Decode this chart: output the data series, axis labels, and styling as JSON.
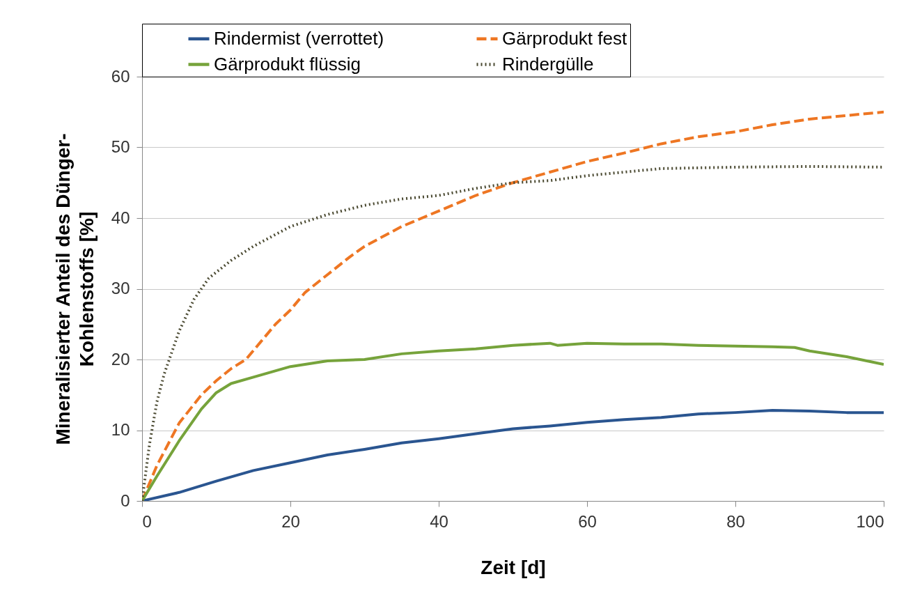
{
  "chart_data": {
    "type": "line",
    "xlabel": "Zeit [d]",
    "ylabel": "Mineralisierter Anteil des Dünger-Kohlenstoffs [%]",
    "xlim": [
      0,
      100
    ],
    "xticks": [
      0,
      20,
      40,
      60,
      80,
      100
    ],
    "ylim": [
      0,
      60
    ],
    "yticks": [
      0,
      10,
      20,
      30,
      40,
      50,
      60
    ],
    "grid": "y",
    "legend": "top",
    "marker": "none",
    "series": [
      {
        "name": "Rindermist (verrottet)",
        "color": "#2a5590",
        "line_style": "solid",
        "x": [
          0,
          5,
          10,
          15,
          20,
          25,
          30,
          35,
          40,
          45,
          50,
          55,
          60,
          65,
          70,
          75,
          80,
          85,
          90,
          95,
          100
        ],
        "values": [
          0,
          1.2,
          2.8,
          4.3,
          5.4,
          6.5,
          7.3,
          8.2,
          8.8,
          9.5,
          10.2,
          10.6,
          11.1,
          11.5,
          11.8,
          12.3,
          12.5,
          12.8,
          12.7,
          12.5,
          12.5
        ]
      },
      {
        "name": "Gärprodukt fest",
        "color": "#ee7623",
        "line_style": "dashed",
        "x": [
          0,
          2,
          5,
          8,
          10,
          12,
          14,
          16,
          18,
          20,
          22,
          25,
          28,
          30,
          35,
          40,
          45,
          50,
          55,
          60,
          65,
          70,
          75,
          80,
          85,
          90,
          95,
          100
        ],
        "values": [
          0,
          5,
          11,
          15,
          17,
          18.7,
          20,
          22.5,
          25,
          27,
          29.5,
          32,
          34.5,
          36,
          38.8,
          41,
          43.2,
          45,
          46.5,
          48,
          49.2,
          50.5,
          51.5,
          52.2,
          53.2,
          54,
          54.5,
          55
        ]
      },
      {
        "name": "Gärprodukt flüssig",
        "color": "#76a33b",
        "line_style": "solid",
        "x": [
          0,
          2,
          5,
          8,
          10,
          12,
          15,
          20,
          25,
          30,
          35,
          40,
          45,
          50,
          55,
          56,
          60,
          65,
          70,
          75,
          80,
          85,
          88,
          90,
          95,
          100
        ],
        "values": [
          0,
          3.5,
          8.5,
          13,
          15.3,
          16.6,
          17.5,
          19,
          19.8,
          20,
          20.8,
          21.2,
          21.5,
          22,
          22.3,
          22,
          22.3,
          22.2,
          22.2,
          22,
          21.9,
          21.8,
          21.7,
          21.2,
          20.4,
          19.3
        ]
      },
      {
        "name": "Rindergülle",
        "color": "#4b4a32",
        "line_style": "dotted",
        "x": [
          0,
          1,
          2,
          3,
          5,
          7,
          9,
          12,
          15,
          20,
          25,
          30,
          35,
          40,
          45,
          50,
          55,
          60,
          65,
          70,
          80,
          90,
          100
        ],
        "values": [
          0,
          8,
          14,
          18,
          24,
          28.5,
          31.5,
          34,
          36,
          38.8,
          40.5,
          41.8,
          42.7,
          43.2,
          44.2,
          45,
          45.3,
          46,
          46.5,
          47,
          47.2,
          47.3,
          47.2
        ]
      }
    ]
  }
}
